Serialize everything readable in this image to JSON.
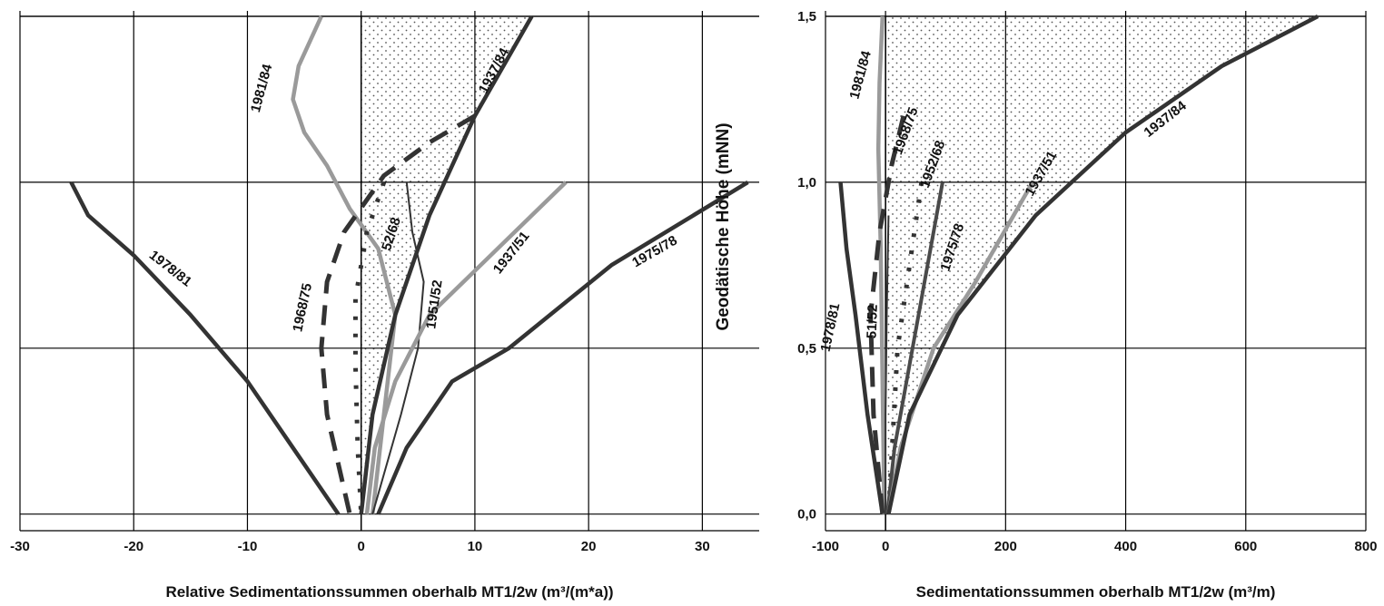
{
  "y_axis_title": "Geodätische Höhe (mNN)",
  "colors": {
    "dark": "#333333",
    "medium": "#4a4a4a",
    "light": "#9a9a9a",
    "grid": "#000000",
    "stipple": "#555555"
  },
  "chart_data": [
    {
      "type": "line",
      "xlabel": "Relative Sedimentationssummen oberhalb MT1/2w (m³/(m*a))",
      "ylabel": "",
      "xlim": [
        -30,
        35
      ],
      "ylim": [
        -0.05,
        1.5
      ],
      "xticks": [
        "-30",
        "-20",
        "-10",
        "0",
        "10",
        "20",
        "30"
      ],
      "xtick_values": [
        -30,
        -20,
        -10,
        0,
        10,
        20,
        30
      ],
      "grid": true,
      "series": [
        {
          "name": "1978/81",
          "style": "dark",
          "x": [
            -25.5,
            -24,
            -20,
            -15,
            -10,
            -6,
            -2
          ],
          "y": [
            1.0,
            0.9,
            0.78,
            0.6,
            0.4,
            0.2,
            0.0
          ]
        },
        {
          "name": "1981/84",
          "style": "light",
          "x": [
            -3.5,
            -5.5,
            -6,
            -5,
            -3,
            -1,
            1.5,
            3,
            2,
            1
          ],
          "y": [
            1.5,
            1.35,
            1.25,
            1.15,
            1.05,
            0.92,
            0.8,
            0.6,
            0.3,
            0.0
          ]
        },
        {
          "name": "1968/75",
          "style": "dashed",
          "x": [
            10,
            6,
            2,
            -1.5,
            -3,
            -3.5,
            -3,
            -1
          ],
          "y": [
            1.2,
            1.12,
            1.02,
            0.85,
            0.7,
            0.5,
            0.3,
            0.0
          ]
        },
        {
          "name": "52/68",
          "style": "dotted",
          "x": [
            2,
            0.5,
            -0.5,
            -0.5,
            -0.3,
            0
          ],
          "y": [
            1.0,
            0.85,
            0.65,
            0.45,
            0.2,
            0.0
          ]
        },
        {
          "name": "1937/84",
          "style": "dark",
          "x": [
            15,
            10,
            6,
            3,
            1,
            0
          ],
          "y": [
            1.5,
            1.2,
            0.9,
            0.6,
            0.3,
            0.0
          ]
        },
        {
          "name": "1951/52",
          "style": "thin",
          "x": [
            4,
            4.5,
            5.5,
            5,
            3.5,
            1
          ],
          "y": [
            1.0,
            0.85,
            0.7,
            0.5,
            0.3,
            0.0
          ]
        },
        {
          "name": "1937/51",
          "style": "light",
          "x": [
            18,
            12,
            6,
            3,
            1.2,
            0.5
          ],
          "y": [
            1.0,
            0.8,
            0.6,
            0.4,
            0.2,
            0.0
          ]
        },
        {
          "name": "1975/78",
          "style": "dark",
          "x": [
            34,
            22,
            13,
            8,
            4,
            1.5
          ],
          "y": [
            1.0,
            0.75,
            0.5,
            0.4,
            0.2,
            0.0
          ]
        }
      ],
      "labels": [
        {
          "text": "1978/81",
          "x": -17,
          "y": 0.73,
          "angle": 38
        },
        {
          "text": "1981/84",
          "x": -8.4,
          "y": 1.28,
          "angle": -75
        },
        {
          "text": "1968/75",
          "x": -4.8,
          "y": 0.62,
          "angle": -78
        },
        {
          "text": "52/68",
          "x": 3,
          "y": 0.84,
          "angle": -72
        },
        {
          "text": "1937/84",
          "x": 12,
          "y": 1.33,
          "angle": -62
        },
        {
          "text": "1951/52",
          "x": 6.8,
          "y": 0.63,
          "angle": -82
        },
        {
          "text": "1937/51",
          "x": 13.5,
          "y": 0.78,
          "angle": -52
        },
        {
          "text": "1975/78",
          "x": 26,
          "y": 0.78,
          "angle": -30
        }
      ]
    },
    {
      "type": "line",
      "xlabel": "Sedimentationssummen oberhalb MT1/2w (m³/m)",
      "ylabel": "",
      "xlim": [
        -100,
        800
      ],
      "ylim": [
        -0.05,
        1.5
      ],
      "xticks": [
        "-100",
        "0",
        "200",
        "400",
        "600",
        "800"
      ],
      "xtick_values": [
        -100,
        0,
        200,
        400,
        600,
        800
      ],
      "yticks": [
        "0,0",
        "0,5",
        "1,0",
        "1,5"
      ],
      "ytick_values": [
        0.0,
        0.5,
        1.0,
        1.5
      ],
      "grid": true,
      "series": [
        {
          "name": "1978/81",
          "style": "dark",
          "x": [
            -75,
            -65,
            -50,
            -30,
            -5
          ],
          "y": [
            1.0,
            0.8,
            0.6,
            0.3,
            0.0
          ]
        },
        {
          "name": "1981/84",
          "style": "light",
          "x": [
            -5,
            -10,
            -12,
            -8,
            -5,
            -2
          ],
          "y": [
            1.5,
            1.3,
            1.1,
            0.8,
            0.4,
            0.0
          ]
        },
        {
          "name": "1968/75",
          "style": "dashed",
          "x": [
            30,
            10,
            -10,
            -25,
            -20,
            -5
          ],
          "y": [
            1.2,
            1.05,
            0.85,
            0.6,
            0.3,
            0.0
          ]
        },
        {
          "name": "51/52",
          "style": "thin",
          "x": [
            5,
            2,
            0,
            0
          ],
          "y": [
            0.9,
            0.6,
            0.3,
            0.0
          ]
        },
        {
          "name": "1952/68",
          "style": "dotted",
          "x": [
            60,
            40,
            20,
            5
          ],
          "y": [
            1.0,
            0.75,
            0.5,
            0.0
          ]
        },
        {
          "name": "1975/78",
          "style": "medium",
          "x": [
            95,
            65,
            35,
            15,
            3
          ],
          "y": [
            1.0,
            0.7,
            0.4,
            0.2,
            0.0
          ]
        },
        {
          "name": "1937/51",
          "style": "light",
          "x": [
            245,
            150,
            80,
            25,
            5
          ],
          "y": [
            1.0,
            0.7,
            0.5,
            0.2,
            0.0
          ]
        },
        {
          "name": "1937/84",
          "style": "dark",
          "x": [
            720,
            560,
            400,
            250,
            120,
            40,
            5
          ],
          "y": [
            1.5,
            1.35,
            1.15,
            0.9,
            0.6,
            0.3,
            0.0
          ]
        }
      ],
      "labels": [
        {
          "text": "1981/84",
          "x": -35,
          "y": 1.32,
          "angle": -75
        },
        {
          "text": "1968/75",
          "x": 40,
          "y": 1.15,
          "angle": -70
        },
        {
          "text": "1952/68",
          "x": 85,
          "y": 1.05,
          "angle": -70
        },
        {
          "text": "1975/78",
          "x": 118,
          "y": 0.8,
          "angle": -72
        },
        {
          "text": "1937/51",
          "x": 265,
          "y": 1.02,
          "angle": -60
        },
        {
          "text": "1937/84",
          "x": 470,
          "y": 1.18,
          "angle": -38
        },
        {
          "text": "1978/81",
          "x": -85,
          "y": 0.56,
          "angle": -78
        },
        {
          "text": "51/52",
          "x": -15,
          "y": 0.58,
          "angle": -88
        }
      ]
    }
  ]
}
